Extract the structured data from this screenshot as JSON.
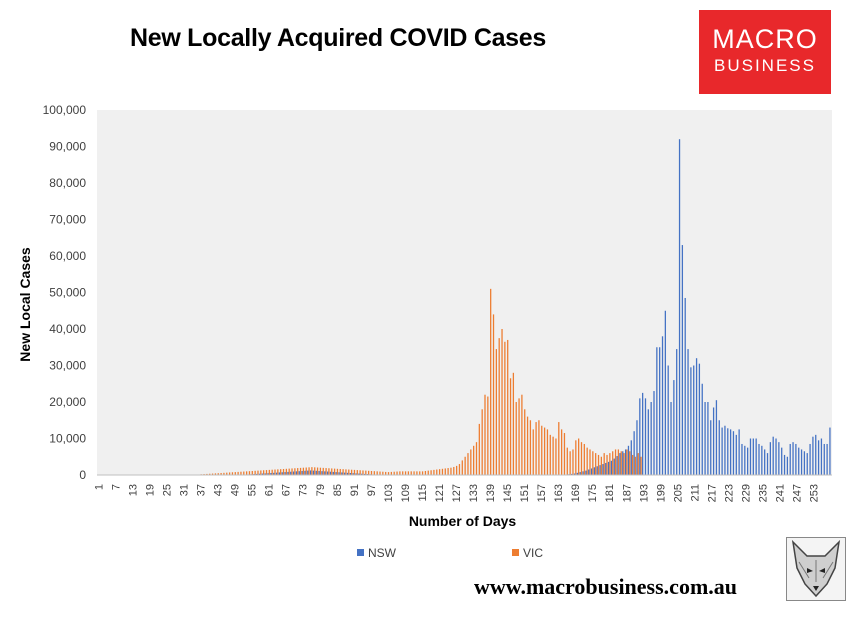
{
  "header": {
    "title": "New Locally Acquired COVID Cases",
    "logo_line1": "MACRO",
    "logo_line2": "BUSINESS",
    "logo_color": "#e8282b"
  },
  "footer": {
    "website": "www.macrobusiness.com.au",
    "mascot_icon": "fox-sketch-icon"
  },
  "chart_data": {
    "type": "bar",
    "title": "New Locally Acquired COVID Cases",
    "xlabel": "Number of Days",
    "ylabel": "New Local Cases",
    "ylim": [
      0,
      100000
    ],
    "yticks": [
      "0",
      "10,000",
      "20,000",
      "30,000",
      "40,000",
      "50,000",
      "60,000",
      "70,000",
      "80,000",
      "90,000",
      "100,000"
    ],
    "xtick_labels": [
      "1",
      "7",
      "13",
      "19",
      "25",
      "31",
      "37",
      "43",
      "49",
      "55",
      "61",
      "67",
      "73",
      "79",
      "85",
      "91",
      "97",
      "103",
      "109",
      "115",
      "121",
      "127",
      "133",
      "139",
      "145",
      "151",
      "157",
      "163",
      "169",
      "175",
      "181",
      "187",
      "193",
      "199",
      "205",
      "211",
      "217",
      "223",
      "229",
      "235",
      "241",
      "247",
      "253"
    ],
    "grid": false,
    "legend_position": "bottom",
    "background": "#f0f0f0",
    "day_start": 1,
    "series": [
      {
        "name": "NSW",
        "color": "#4472c4",
        "values": [
          0,
          0,
          0,
          0,
          0,
          0,
          0,
          0,
          0,
          0,
          0,
          0,
          0,
          0,
          0,
          0,
          0,
          0,
          0,
          0,
          0,
          0,
          0,
          0,
          0,
          0,
          0,
          0,
          0,
          0,
          0,
          0,
          0,
          0,
          0,
          0,
          0,
          0,
          0,
          0,
          0,
          0,
          0,
          0,
          0,
          0,
          0,
          0,
          0,
          0,
          0,
          0,
          100,
          150,
          200,
          250,
          300,
          350,
          400,
          450,
          500,
          550,
          600,
          650,
          700,
          750,
          800,
          850,
          900,
          950,
          1000,
          1050,
          1100,
          1150,
          1200,
          1250,
          1200,
          1150,
          1100,
          1050,
          1000,
          950,
          900,
          850,
          800,
          750,
          700,
          650,
          600,
          550,
          500,
          450,
          400,
          350,
          300,
          250,
          200,
          150,
          100,
          80,
          60,
          50,
          40,
          30,
          20,
          10,
          0,
          0,
          0,
          0,
          0,
          0,
          0,
          0,
          0,
          0,
          0,
          0,
          0,
          0,
          0,
          0,
          0,
          0,
          0,
          0,
          0,
          0,
          0,
          0,
          0,
          0,
          0,
          0,
          0,
          0,
          0,
          0,
          0,
          0,
          0,
          0,
          0,
          0,
          0,
          0,
          0,
          0,
          0,
          0,
          0,
          0,
          0,
          0,
          0,
          0,
          0,
          0,
          0,
          0,
          0,
          0,
          0,
          0,
          0,
          0,
          200,
          300,
          400,
          600,
          800,
          1000,
          1200,
          1500,
          1800,
          2100,
          2400,
          2700,
          3000,
          3300,
          3600,
          3900,
          4500,
          5200,
          6000,
          6500,
          7000,
          8000,
          9500,
          12000,
          15000,
          21000,
          22500,
          21000,
          18000,
          20000,
          23000,
          35000,
          35000,
          38000,
          45000,
          30000,
          20000,
          26000,
          34500,
          92000,
          63000,
          48500,
          34500,
          29500,
          30000,
          32000,
          30500,
          25000,
          20000,
          20000,
          15000,
          18500,
          20500,
          15000,
          13000,
          13500,
          12800,
          12500,
          12000,
          11000,
          12500,
          8500,
          8000,
          7500,
          10000,
          10000,
          10000,
          8500,
          8000,
          7000,
          6000,
          9000,
          10500,
          10000,
          9000,
          7500,
          5500,
          5000,
          8500,
          9000,
          8500,
          7500,
          7000,
          6500,
          6000,
          8500,
          10500,
          11000,
          9500,
          10000,
          8500,
          8500,
          13000
        ]
      },
      {
        "name": "VIC",
        "color": "#ed7d31",
        "values": [
          0,
          0,
          0,
          0,
          0,
          0,
          0,
          0,
          0,
          0,
          0,
          0,
          0,
          0,
          0,
          0,
          0,
          0,
          0,
          0,
          0,
          0,
          0,
          0,
          0,
          0,
          0,
          0,
          0,
          0,
          0,
          0,
          0,
          0,
          0,
          0,
          200,
          250,
          300,
          350,
          400,
          450,
          500,
          550,
          600,
          650,
          700,
          750,
          800,
          850,
          900,
          950,
          1000,
          1050,
          1100,
          1150,
          1200,
          1250,
          1300,
          1350,
          1400,
          1450,
          1500,
          1550,
          1600,
          1650,
          1700,
          1750,
          1800,
          1850,
          1900,
          1950,
          2000,
          2050,
          2100,
          2150,
          2100,
          2050,
          2000,
          1950,
          1900,
          1850,
          1800,
          1750,
          1700,
          1650,
          1600,
          1550,
          1500,
          1450,
          1400,
          1350,
          1300,
          1250,
          1200,
          1150,
          1100,
          1050,
          1000,
          950,
          900,
          850,
          800,
          850,
          900,
          950,
          1000,
          1000,
          1000,
          1000,
          1000,
          1000,
          1000,
          1000,
          1000,
          1100,
          1200,
          1300,
          1400,
          1500,
          1600,
          1700,
          1800,
          1900,
          2000,
          2200,
          2500,
          3000,
          4000,
          5000,
          6000,
          7000,
          8000,
          9000,
          14000,
          18000,
          22000,
          21500,
          51000,
          44000,
          34500,
          37500,
          40000,
          36500,
          37000,
          26500,
          28000,
          20000,
          21000,
          22000,
          18000,
          16000,
          15000,
          12500,
          14500,
          15000,
          13500,
          13000,
          12500,
          11000,
          10500,
          10000,
          14500,
          12500,
          11500,
          7500,
          6500,
          7000,
          9500,
          10000,
          9000,
          8500,
          7500,
          7000,
          6500,
          6000,
          5500,
          5000,
          6000,
          5500,
          6000,
          6500,
          7000,
          7000,
          6500,
          6000,
          7000,
          6500,
          5500,
          5000,
          6000,
          5000,
          0,
          0,
          0,
          0,
          0,
          0,
          0,
          0,
          0,
          0,
          0,
          0,
          0,
          0,
          0,
          0,
          0,
          0,
          0,
          0,
          0,
          0,
          0,
          0,
          0,
          0,
          0,
          0,
          0,
          0,
          0,
          0,
          0,
          0,
          0,
          0,
          0,
          0,
          0,
          0,
          0,
          0,
          0,
          0,
          0,
          0,
          0,
          0,
          0,
          0
        ]
      }
    ]
  }
}
